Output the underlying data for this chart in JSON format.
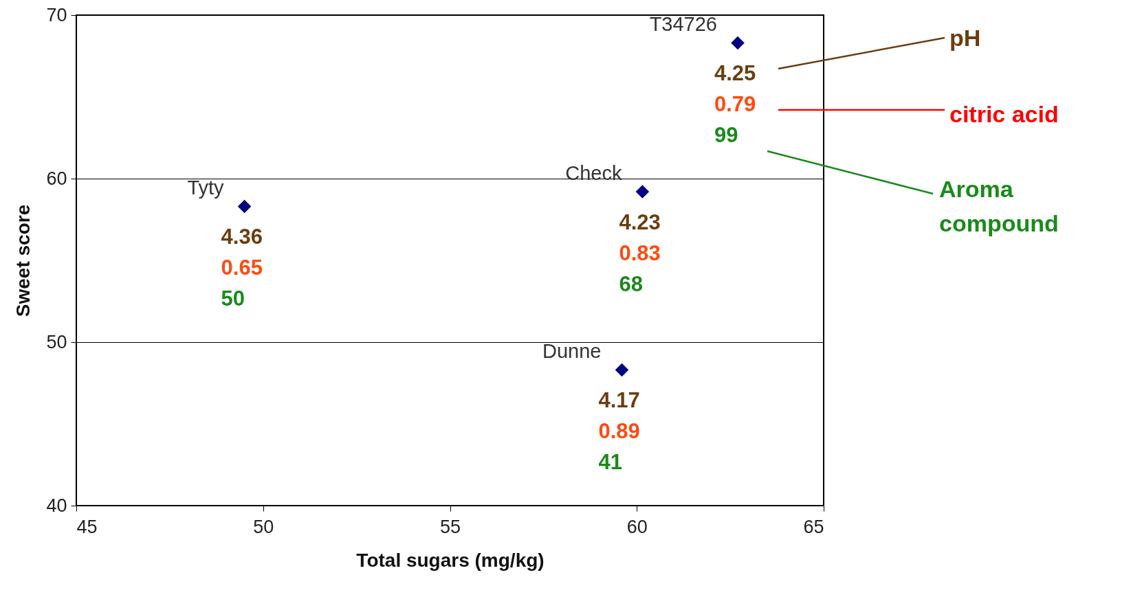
{
  "chart_data": {
    "type": "scatter",
    "xlabel": "Total sugars (mg/kg)",
    "ylabel": "Sweet score",
    "xlim": [
      45,
      65
    ],
    "xticks": [
      45,
      50,
      55,
      60,
      65
    ],
    "ylim": [
      40,
      70
    ],
    "yticks": [
      40,
      50,
      60,
      70
    ],
    "grid": "y",
    "marker": "diamond",
    "legend": false,
    "series": [
      {
        "name": "Tyty",
        "color": "#000080",
        "x": [
          49.5
        ],
        "values": [
          58.3
        ]
      },
      {
        "name": "Check",
        "color": "#000080",
        "x": [
          60.15
        ],
        "values": [
          59.2
        ]
      },
      {
        "name": "Dunne",
        "color": "#000080",
        "x": [
          59.6
        ],
        "values": [
          48.3
        ]
      },
      {
        "name": "T34726",
        "color": "#000080",
        "x": [
          62.7
        ],
        "values": [
          68.3
        ]
      }
    ],
    "annotations": [
      "4.36",
      "0.65",
      "50",
      "4.23",
      "0.83",
      "68",
      "4.17",
      "0.89",
      "41",
      "4.25",
      "0.79",
      "99",
      "pH",
      "citric acid",
      "Aroma compound"
    ]
  }
}
